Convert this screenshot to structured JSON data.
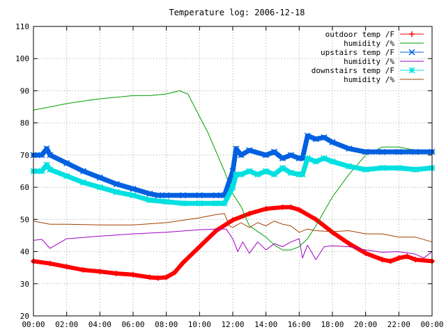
{
  "chart_data": {
    "type": "line",
    "title": "Temperature log: 2006-12-18",
    "xlabel": "",
    "ylabel": "",
    "xlim": [
      0,
      24
    ],
    "ylim": [
      20,
      110
    ],
    "grid": true,
    "legend_position": "top-right",
    "x_ticks": [
      {
        "v": 0,
        "label": "00:00"
      },
      {
        "v": 2,
        "label": "02:00"
      },
      {
        "v": 4,
        "label": "04:00"
      },
      {
        "v": 6,
        "label": "06:00"
      },
      {
        "v": 8,
        "label": "08:00"
      },
      {
        "v": 10,
        "label": "10:00"
      },
      {
        "v": 12,
        "label": "12:00"
      },
      {
        "v": 14,
        "label": "14:00"
      },
      {
        "v": 16,
        "label": "16:00"
      },
      {
        "v": 18,
        "label": "18:00"
      },
      {
        "v": 20,
        "label": "20:00"
      },
      {
        "v": 22,
        "label": "22:00"
      },
      {
        "v": 24,
        "label": "00:00"
      }
    ],
    "y_ticks": [
      {
        "v": 20,
        "label": "20"
      },
      {
        "v": 30,
        "label": "30"
      },
      {
        "v": 40,
        "label": "40"
      },
      {
        "v": 50,
        "label": "50"
      },
      {
        "v": 60,
        "label": "60"
      },
      {
        "v": 70,
        "label": "70"
      },
      {
        "v": 80,
        "label": "80"
      },
      {
        "v": 90,
        "label": "90"
      },
      {
        "v": 100,
        "label": "100"
      },
      {
        "v": 110,
        "label": "110"
      }
    ],
    "series": [
      {
        "name": "outdoor temp /F",
        "color": "#ff0000",
        "marker": "plus",
        "x": [
          0,
          1,
          2,
          3,
          4,
          5,
          6,
          7,
          7.5,
          8,
          8.5,
          9,
          10,
          11,
          12,
          13,
          14,
          15,
          15.5,
          16,
          17,
          18,
          19,
          20,
          21,
          21.5,
          22,
          22.5,
          23,
          24
        ],
        "y": [
          37,
          36.3,
          35.3,
          34.3,
          33.8,
          33.2,
          32.8,
          32.0,
          31.8,
          32.0,
          33.5,
          36.5,
          41.5,
          46.5,
          49.8,
          51.8,
          53.3,
          53.8,
          53.8,
          53.0,
          50.0,
          46.0,
          42.5,
          39.5,
          37.5,
          37.0,
          38.0,
          38.5,
          37.5,
          37.0
        ]
      },
      {
        "name": "humidity /%",
        "color": "#00a000",
        "marker": "",
        "x": [
          0,
          1,
          2,
          3,
          4,
          5,
          6,
          7,
          8,
          8.8,
          9.3,
          10,
          10.5,
          11,
          11.5,
          12,
          12.5,
          13,
          14,
          14.5,
          15,
          15.5,
          16,
          16.5,
          17,
          18,
          19,
          20,
          21,
          22,
          23,
          24
        ],
        "y": [
          84,
          85,
          86,
          86.8,
          87.5,
          88,
          88.5,
          88.5,
          89,
          90,
          89,
          82,
          77,
          71,
          65,
          58,
          54,
          48,
          44.5,
          42,
          40.5,
          40.5,
          41.5,
          44,
          48,
          57,
          64,
          70,
          72.5,
          72.5,
          71.5,
          70.5
        ]
      },
      {
        "name": "upstairs temp /F",
        "color": "#0060e0",
        "marker": "cross",
        "x": [
          0,
          0.5,
          0.8,
          1,
          2,
          3,
          4,
          5,
          6,
          7,
          7.5,
          8,
          9,
          10,
          11,
          11.5,
          12,
          12.2,
          12.5,
          13,
          14,
          14.5,
          15,
          15.5,
          16,
          16.2,
          16.5,
          17,
          17.5,
          18,
          19,
          20,
          21,
          22,
          23,
          24
        ],
        "y": [
          70,
          70,
          72,
          70,
          67.5,
          65,
          63,
          61,
          59.5,
          58,
          57.5,
          57.5,
          57.5,
          57.5,
          57.5,
          57.5,
          65,
          72,
          70,
          71.5,
          70,
          71,
          69,
          70,
          69,
          69,
          76,
          75,
          75.5,
          74,
          72,
          71,
          71,
          71,
          71,
          71
        ]
      },
      {
        "name": "humidity /%",
        "color": "#a000c0",
        "marker": "",
        "x": [
          0,
          0.5,
          1,
          2,
          4,
          6,
          8,
          10,
          11,
          11.6,
          12,
          12.3,
          12.6,
          13,
          13.5,
          14,
          14.5,
          15,
          15.5,
          16,
          16.2,
          16.5,
          17,
          17.5,
          18,
          19,
          20,
          21,
          22,
          23,
          23.5,
          24
        ],
        "y": [
          43.5,
          43.8,
          41,
          44,
          44.8,
          45.5,
          46,
          46.8,
          47,
          47,
          44,
          40,
          43,
          39.5,
          43,
          40.5,
          42.5,
          41.5,
          43,
          44,
          38,
          42,
          37.5,
          41.5,
          41.8,
          41.5,
          40.5,
          39.8,
          40,
          39.2,
          38,
          40
        ]
      },
      {
        "name": "downstairs temp /F",
        "color": "#00e0e0",
        "marker": "star",
        "x": [
          0,
          0.5,
          0.8,
          1,
          2,
          3,
          4,
          5,
          6,
          7,
          8,
          9,
          10,
          11,
          11.5,
          12,
          12.2,
          12.5,
          13,
          13.5,
          14,
          14.5,
          15,
          15.5,
          16,
          16.2,
          16.5,
          17,
          17.5,
          18,
          19,
          20,
          21,
          22,
          23,
          24
        ],
        "y": [
          65,
          65,
          67,
          65.5,
          63.5,
          61.5,
          60,
          58.5,
          57.5,
          56,
          55.5,
          55,
          55,
          55,
          55,
          60,
          64,
          64,
          65,
          64,
          65,
          64,
          66,
          64.5,
          64,
          64,
          69,
          68,
          69,
          68,
          66.5,
          65.5,
          66,
          66,
          65.5,
          66
        ]
      },
      {
        "name": "humidity /%",
        "color": "#a04000",
        "marker": "",
        "x": [
          0,
          0.5,
          1,
          2,
          4,
          6,
          8,
          10,
          11,
          11.5,
          11.8,
          12,
          12.5,
          13,
          13.5,
          14,
          14.5,
          15,
          15.5,
          16,
          16.5,
          17,
          18,
          19,
          20,
          21,
          22,
          23,
          24
        ],
        "y": [
          49.5,
          49,
          48.5,
          48.5,
          48.3,
          48.3,
          49,
          50.5,
          51.5,
          51.8,
          48,
          47.5,
          49,
          47.5,
          49,
          48,
          49.5,
          48.5,
          48,
          46,
          47,
          46.5,
          46.2,
          46.5,
          45.5,
          45.5,
          44.5,
          44.5,
          43
        ]
      }
    ]
  }
}
